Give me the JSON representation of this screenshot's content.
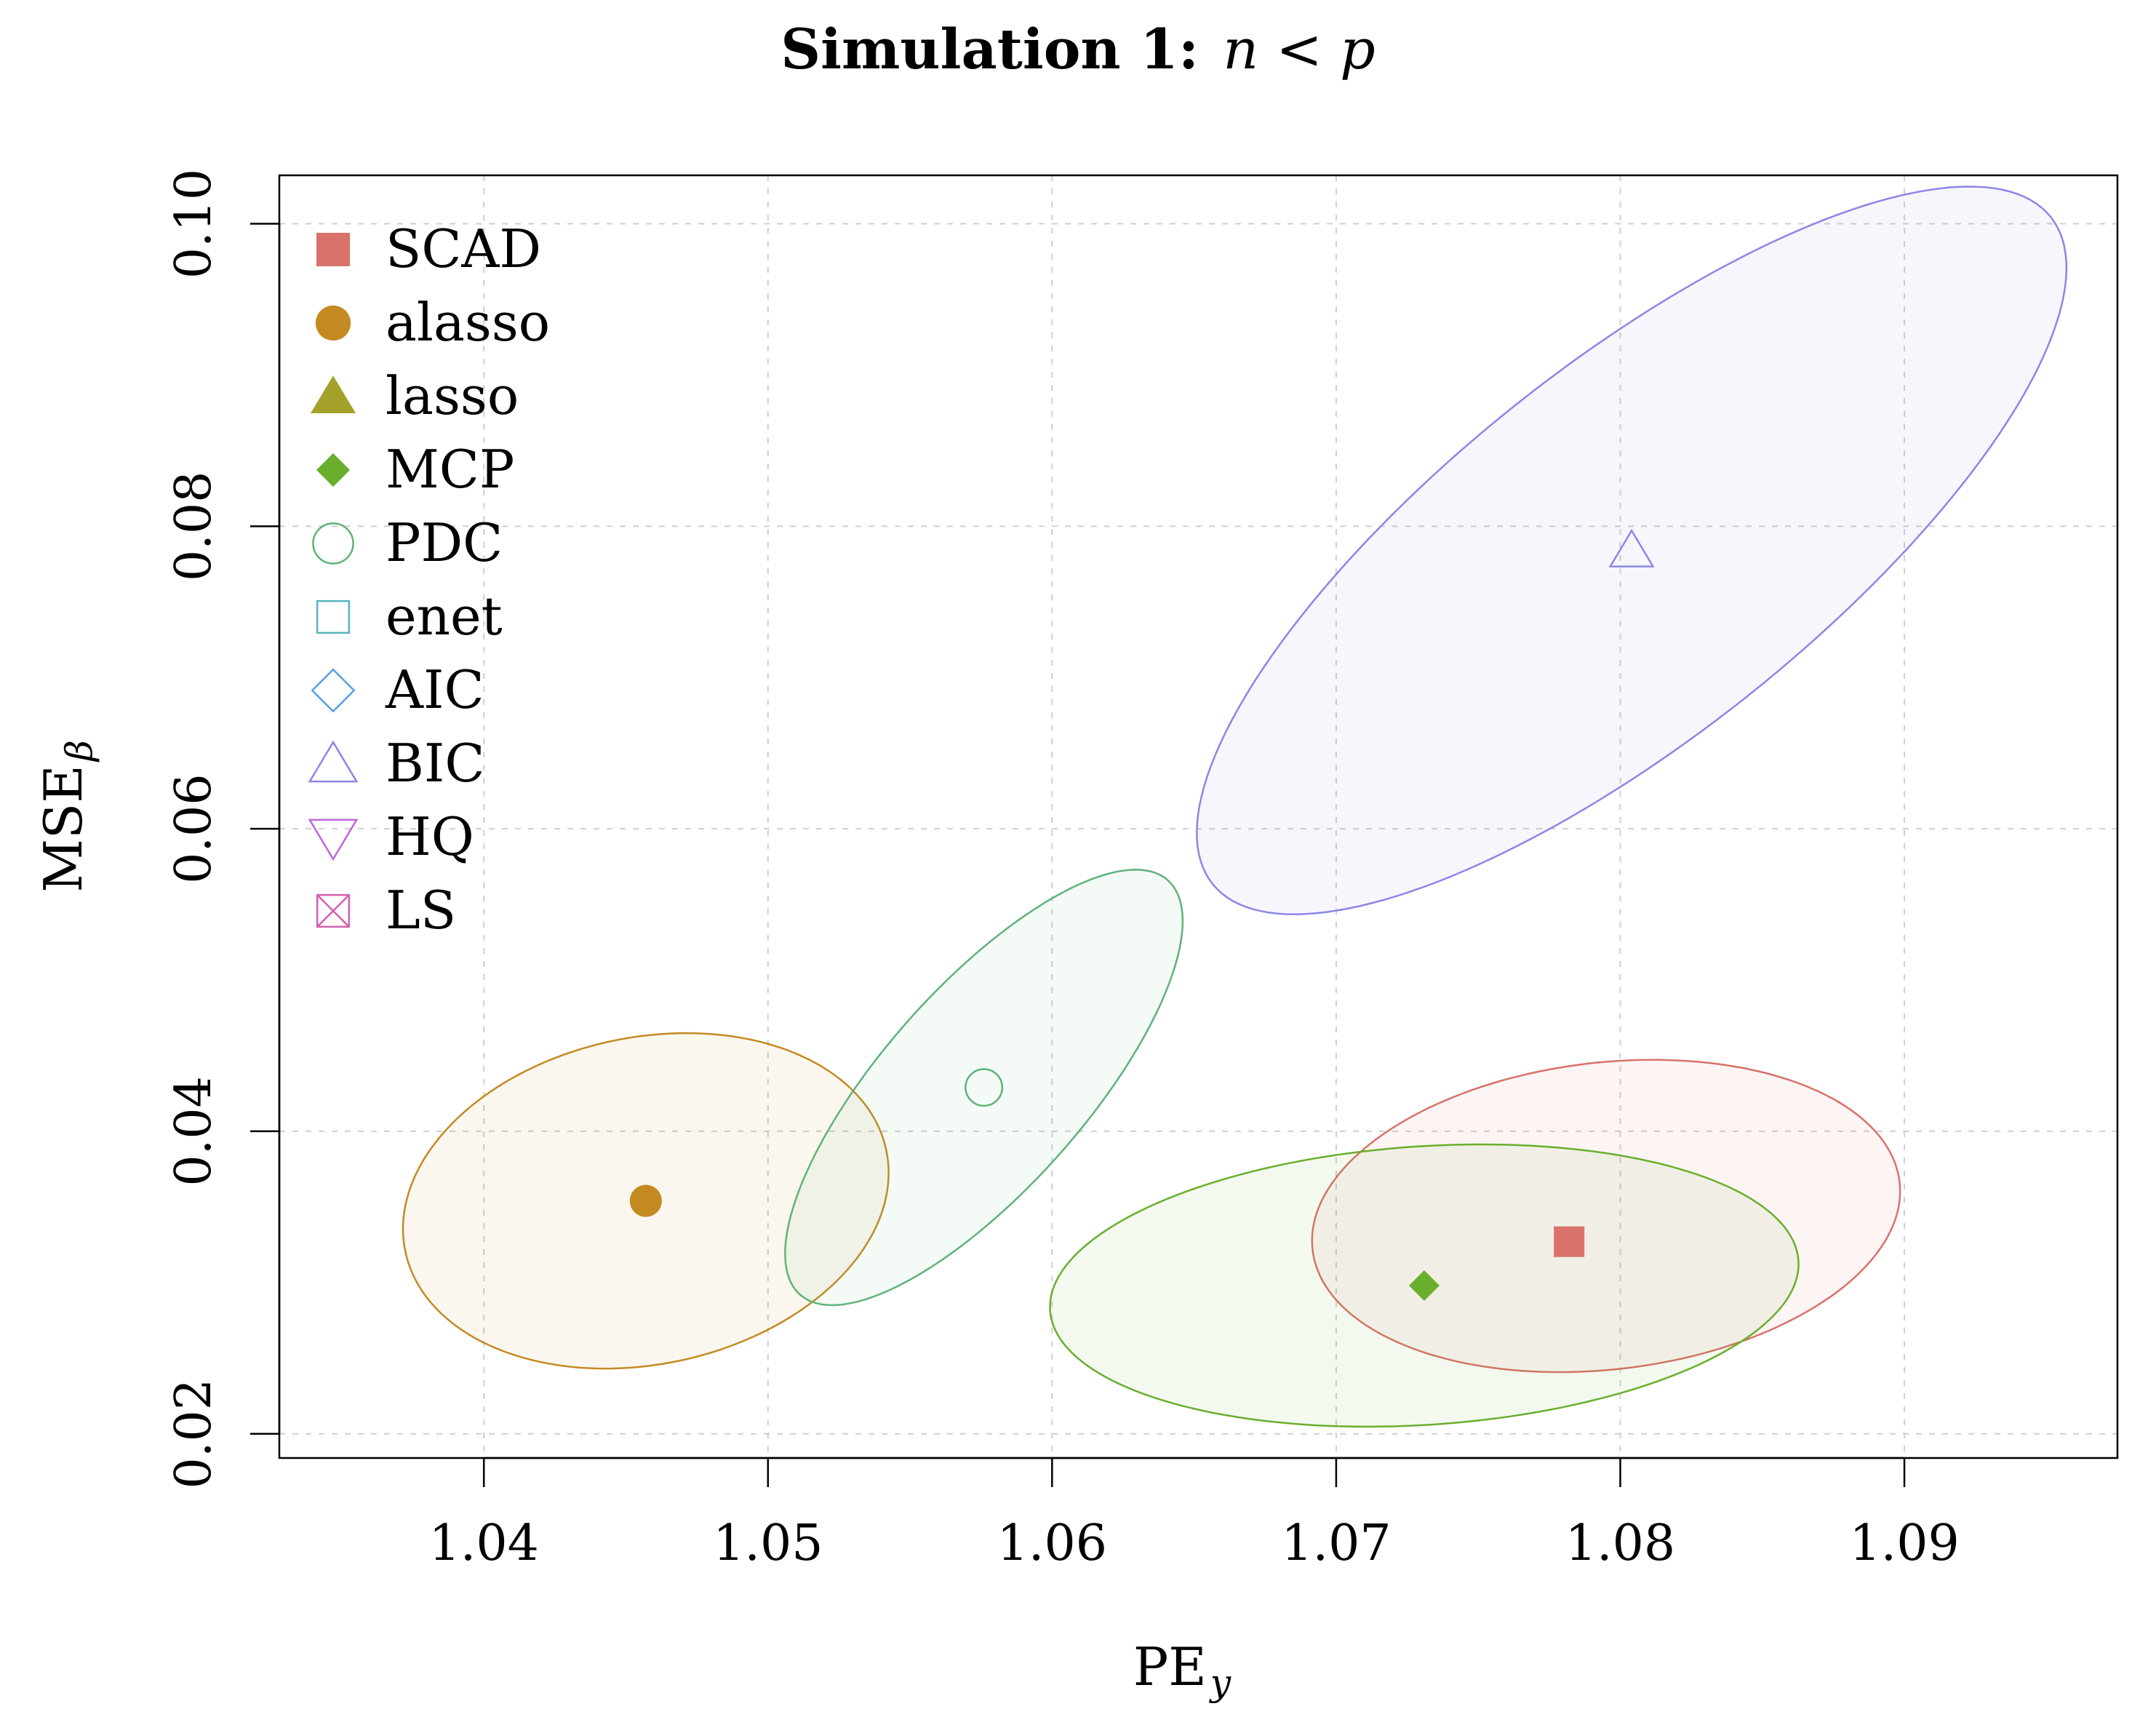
{
  "chart_data": {
    "type": "scatter",
    "title": "Simulation 1:",
    "title_math": "n < p",
    "xlabel": "PE",
    "xlabel_sub": "y",
    "ylabel": "MSE",
    "ylabel_sub": "β",
    "xlim": [
      1.0328,
      1.0975
    ],
    "ylim": [
      0.0184,
      0.1032
    ],
    "xticks": [
      1.04,
      1.05,
      1.06,
      1.07,
      1.08,
      1.09
    ],
    "xtick_labels": [
      "1.04",
      "1.05",
      "1.06",
      "1.07",
      "1.08",
      "1.09"
    ],
    "yticks": [
      0.02,
      0.04,
      0.06,
      0.08,
      0.1
    ],
    "ytick_labels": [
      "0.02",
      "0.04",
      "0.06",
      "0.08",
      "0.10"
    ],
    "grid": true,
    "legend_position": "top-left",
    "series": [
      {
        "name": "SCAD",
        "marker": "filled-square",
        "color": "#D9726A",
        "point": [
          1.0782,
          0.0327
        ],
        "ellipse": {
          "cx": 1.0795,
          "cy": 0.0344,
          "rx": 0.0104,
          "ry": 0.0054,
          "angle_deg": -6.6
        }
      },
      {
        "name": "alasso",
        "marker": "filled-circle",
        "color": "#C48A22",
        "point": [
          1.0457,
          0.0354
        ],
        "ellipse": {
          "cx": 1.0457,
          "cy": 0.0354,
          "rx": 0.00865,
          "ry": 0.00575,
          "angle_deg": -11.9
        }
      },
      {
        "name": "lasso",
        "marker": "filled-triangle-up",
        "color": "#A3A12A"
      },
      {
        "name": "MCP",
        "marker": "filled-diamond",
        "color": "#6AAE2D",
        "point": [
          1.0731,
          0.0298
        ],
        "ellipse": {
          "cx": 1.0731,
          "cy": 0.0298,
          "rx": 0.0132,
          "ry": 0.0049,
          "angle_deg": -3.8
        }
      },
      {
        "name": "PDC",
        "marker": "open-circle",
        "color": "#5FB27A",
        "point": [
          1.0576,
          0.0429
        ],
        "ellipse": {
          "cx": 1.0576,
          "cy": 0.0429,
          "rx": 0.00975,
          "ry": 0.00355,
          "angle_deg": -48.4
        }
      },
      {
        "name": "enet",
        "marker": "open-square",
        "color": "#56B4BF"
      },
      {
        "name": "AIC",
        "marker": "open-diamond",
        "color": "#5A9FE0"
      },
      {
        "name": "BIC",
        "marker": "open-triangle-up",
        "color": "#8C86E6",
        "point": [
          1.0804,
          0.0784
        ],
        "ellipse": {
          "cx": 1.0804,
          "cy": 0.0784,
          "rx": 0.01885,
          "ry": 0.00655,
          "angle_deg": -38.5
        }
      },
      {
        "name": "HQ",
        "marker": "open-triangle-down",
        "color": "#C066D8"
      },
      {
        "name": "LS",
        "marker": "boxed-x",
        "color": "#D45FB0"
      }
    ]
  }
}
